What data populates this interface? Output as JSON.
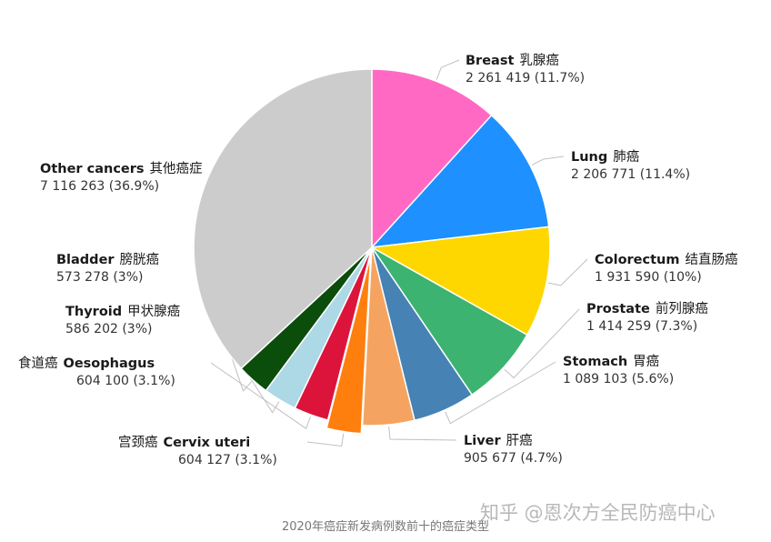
{
  "chart_data": {
    "type": "pie",
    "start_angle_deg": 0,
    "direction": "clockwise",
    "slices": [
      {
        "en": "Breast",
        "zh": "乳腺癌",
        "value": 2261419,
        "value_text": "2 261 419 (11.7%)",
        "percent": 11.7,
        "color": "#FF69C4"
      },
      {
        "en": "Lung",
        "zh": "肺癌",
        "value": 2206771,
        "value_text": "2 206 771 (11.4%)",
        "percent": 11.4,
        "color": "#1E90FF"
      },
      {
        "en": "Colorectum",
        "zh": "结直肠癌",
        "value": 1931590,
        "value_text": "1 931 590 (10%)",
        "percent": 10,
        "color": "#FFD700"
      },
      {
        "en": "Prostate",
        "zh": "前列腺癌",
        "value": 1414259,
        "value_text": "1 414 259 (7.3%)",
        "percent": 7.3,
        "color": "#3CB371"
      },
      {
        "en": "Stomach",
        "zh": "胃癌",
        "value": 1089103,
        "value_text": "1 089 103 (5.6%)",
        "percent": 5.6,
        "color": "#4682B4"
      },
      {
        "en": "Liver",
        "zh": "肝癌",
        "value": 905677,
        "value_text": "905 677 (4.7%)",
        "percent": 4.7,
        "color": "#F4A460"
      },
      {
        "en": "Cervix uteri",
        "zh": "宫颈癌",
        "value": 604127,
        "value_text": "604 127 (3.1%)",
        "percent": 3.1,
        "color": "#FF7F0E",
        "exploded": true
      },
      {
        "en": "Oesophagus",
        "zh": "食道癌",
        "value": 604100,
        "value_text": "604 100 (3.1%)",
        "percent": 3.1,
        "color": "#DC143C"
      },
      {
        "en": "Thyroid",
        "zh": "甲状腺癌",
        "value": 586202,
        "value_text": "586 202 (3%)",
        "percent": 3,
        "color": "#ADD8E6"
      },
      {
        "en": "Bladder",
        "zh": "膀胱癌",
        "value": 573278,
        "value_text": "573 278 (3%)",
        "percent": 3,
        "color": "#0B4D0B"
      },
      {
        "en": "Other cancers",
        "zh": "其他癌症",
        "value": 7116263,
        "value_text": "7 116 263 (36.9%)",
        "percent": 36.9,
        "color": "#CCCCCC"
      }
    ],
    "caption": "2020年癌症新发病例数前十的癌症类型"
  },
  "watermark": "知乎 @恩次方全民防癌中心"
}
